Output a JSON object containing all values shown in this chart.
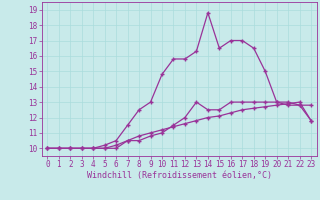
{
  "xlabel": "Windchill (Refroidissement éolien,°C)",
  "x_values": [
    0,
    1,
    2,
    3,
    4,
    5,
    6,
    7,
    8,
    9,
    10,
    11,
    12,
    13,
    14,
    15,
    16,
    17,
    18,
    19,
    20,
    21,
    22,
    23
  ],
  "line_peak_y": [
    10.0,
    10.0,
    10.0,
    10.0,
    10.0,
    10.2,
    10.5,
    11.5,
    12.5,
    13.0,
    14.8,
    15.8,
    15.8,
    16.3,
    18.8,
    16.5,
    17.0,
    17.0,
    16.5,
    15.0,
    13.0,
    13.0,
    12.8,
    12.8
  ],
  "line_mid_y": [
    10.0,
    10.0,
    10.0,
    10.0,
    10.0,
    10.0,
    10.0,
    10.5,
    10.5,
    10.8,
    11.0,
    11.5,
    12.0,
    13.0,
    12.5,
    12.5,
    13.0,
    13.0,
    13.0,
    13.0,
    13.0,
    12.8,
    12.8,
    11.8
  ],
  "line_bot_y": [
    10.0,
    10.0,
    10.0,
    10.0,
    10.0,
    10.0,
    10.2,
    10.5,
    10.8,
    11.0,
    11.2,
    11.4,
    11.6,
    11.8,
    12.0,
    12.1,
    12.3,
    12.5,
    12.6,
    12.7,
    12.8,
    12.9,
    13.0,
    11.8
  ],
  "bg_color": "#c8eaea",
  "line_color": "#993399",
  "grid_color": "#aadddd",
  "ylim": [
    9.5,
    19.5
  ],
  "xlim": [
    -0.5,
    23.5
  ],
  "yticks": [
    10,
    11,
    12,
    13,
    14,
    15,
    16,
    17,
    18,
    19
  ],
  "xticks": [
    0,
    1,
    2,
    3,
    4,
    5,
    6,
    7,
    8,
    9,
    10,
    11,
    12,
    13,
    14,
    15,
    16,
    17,
    18,
    19,
    20,
    21,
    22,
    23
  ]
}
